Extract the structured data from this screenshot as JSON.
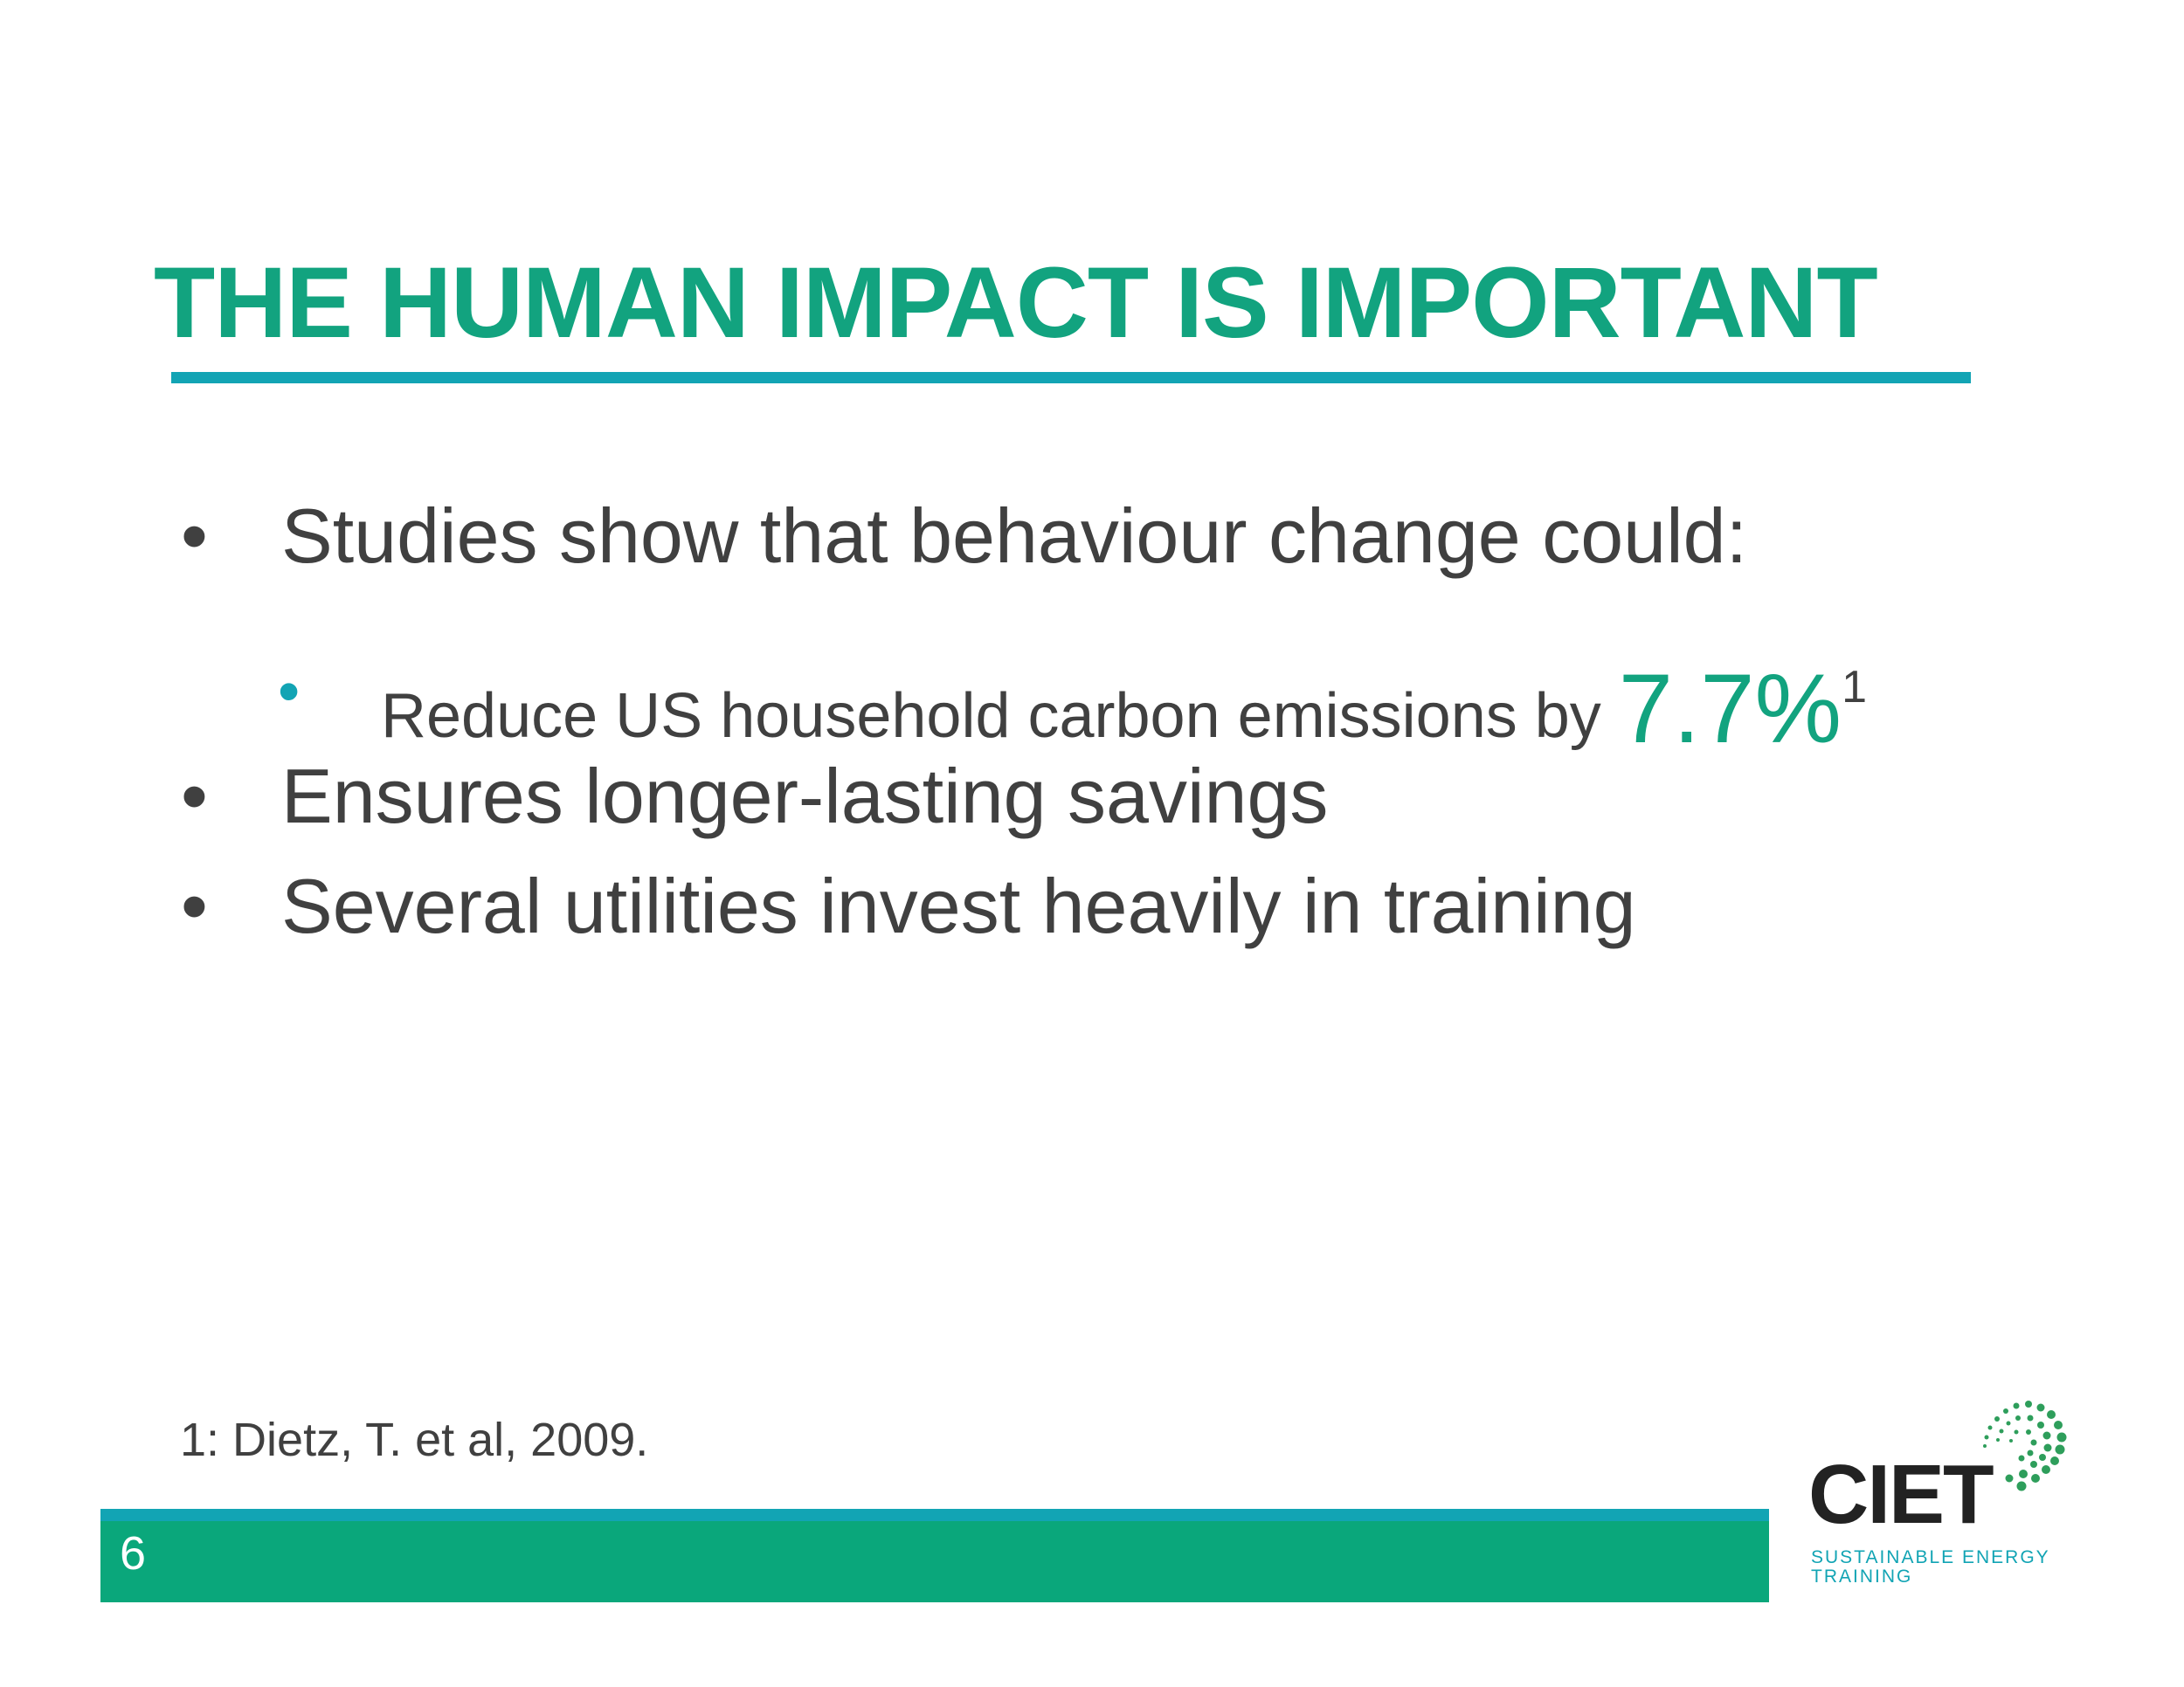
{
  "slide": {
    "title": "THE HUMAN IMPACT IS IMPORTANT",
    "bullet_glyph": "•",
    "bullets": [
      {
        "text": "Studies show that behaviour change could:"
      },
      {
        "text": "Reduce US household carbon emissions by ",
        "highlight": "7.7%",
        "footnote_ref": "1"
      },
      {
        "text": "Ensures longer-lasting savings"
      },
      {
        "text": "Several utilities invest heavily in training"
      }
    ],
    "footnote": "1: Dietz, T. et al, 2009.",
    "page_number": "6"
  },
  "logo": {
    "wordmark": "CIET",
    "tagline_line1": "SUSTAINABLE ENERGY",
    "tagline_line2": "TRAINING",
    "icon": "dotted-arc-icon"
  },
  "colors": {
    "title_green": "#12A37F",
    "teal": "#12A4B4",
    "footer_green": "#0AA77B",
    "body_text": "#404040"
  }
}
